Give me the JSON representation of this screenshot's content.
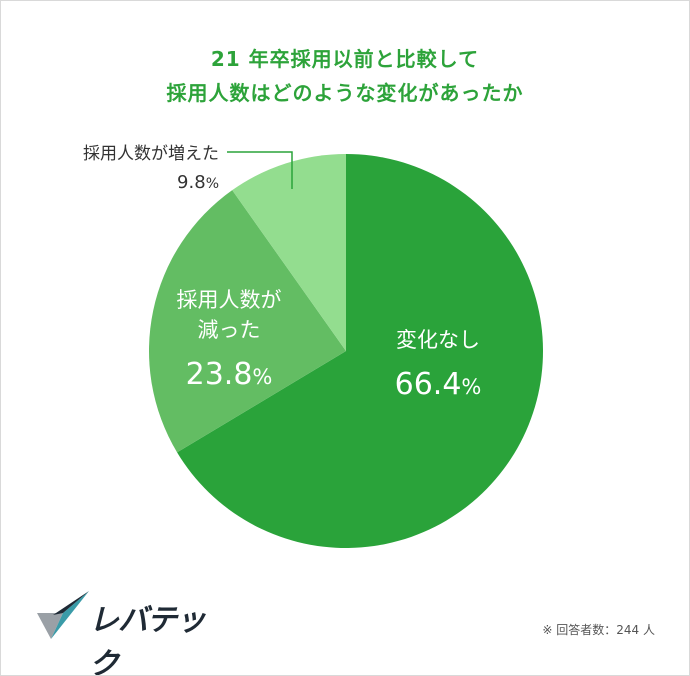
{
  "title": {
    "line1": "21 年卒採用以前と比較して",
    "line2": "採用人数はどのような変化があったか"
  },
  "chart_data": {
    "type": "pie",
    "title": "21 年卒採用以前と比較して 採用人数はどのような変化があったか",
    "slices": [
      {
        "label": "変化なし",
        "value": 66.4,
        "display": "66.4%",
        "color": "#2aa33a"
      },
      {
        "label": "採用人数が減った",
        "value": 23.8,
        "display": "23.8%",
        "color": "#63bd63"
      },
      {
        "label": "採用人数が増えた",
        "value": 9.8,
        "display": "9.8%",
        "color": "#93dd8f"
      }
    ],
    "start": "12 o'clock",
    "direction": "clockwise"
  },
  "labels": {
    "s0_line1": "変化なし",
    "s0_value": "66.4",
    "s1_line1": "採用人数が",
    "s1_line2": "減った",
    "s1_value": "23.8",
    "s2_line1": "採用人数が増えた",
    "s2_value": "9.8",
    "percent": "%"
  },
  "logo": {
    "text": "レバテック",
    "colors": [
      "#1f2a35",
      "#3a9ba8",
      "#9aa0a6"
    ]
  },
  "footnote": "※ 回答者数：244 人"
}
